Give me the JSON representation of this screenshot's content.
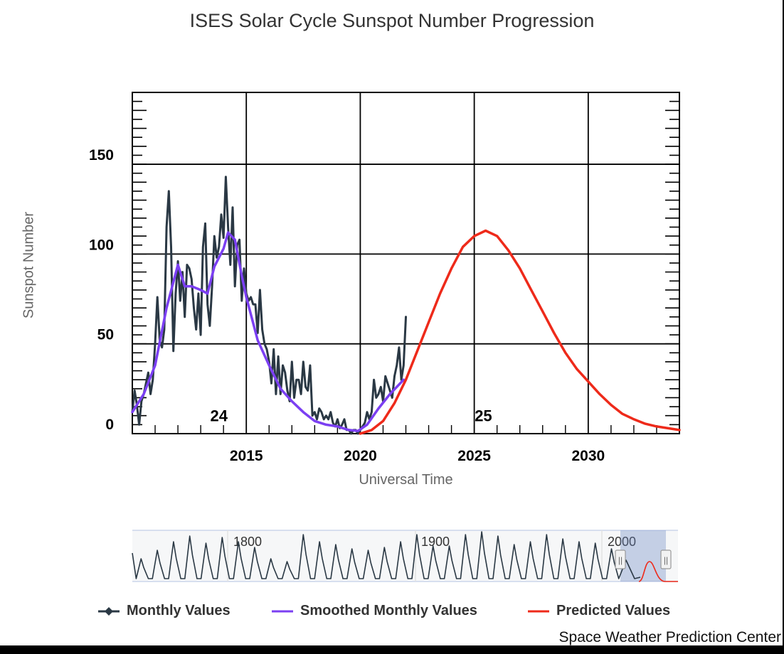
{
  "chart_data": {
    "type": "line",
    "title": "ISES Solar Cycle Sunspot Number Progression",
    "xlabel": "Universal Time",
    "ylabel": "Sunspot Number",
    "xlim": [
      2010.0,
      2034.0
    ],
    "ylim": [
      0,
      190
    ],
    "x_ticks": [
      2015,
      2020,
      2025,
      2030
    ],
    "y_ticks": [
      0,
      50,
      100,
      150
    ],
    "grid": true,
    "legend_position": "bottom",
    "cycle_labels": [
      {
        "text": "24",
        "x": 2013.8,
        "y": 10
      },
      {
        "text": "25",
        "x": 2025.4,
        "y": 10
      }
    ],
    "series": [
      {
        "name": "Monthly Values",
        "color": "#2a3844",
        "x": [
          2010.0,
          2010.1,
          2010.2,
          2010.3,
          2010.4,
          2010.5,
          2010.6,
          2010.7,
          2010.8,
          2010.9,
          2011.0,
          2011.1,
          2011.2,
          2011.3,
          2011.4,
          2011.5,
          2011.6,
          2011.7,
          2011.8,
          2011.9,
          2012.0,
          2012.1,
          2012.2,
          2012.3,
          2012.4,
          2012.5,
          2012.6,
          2012.7,
          2012.8,
          2012.9,
          2013.0,
          2013.1,
          2013.2,
          2013.3,
          2013.4,
          2013.5,
          2013.6,
          2013.7,
          2013.8,
          2013.9,
          2014.0,
          2014.1,
          2014.2,
          2014.3,
          2014.4,
          2014.5,
          2014.6,
          2014.7,
          2014.8,
          2014.9,
          2015.0,
          2015.1,
          2015.2,
          2015.3,
          2015.4,
          2015.5,
          2015.6,
          2015.7,
          2015.8,
          2015.9,
          2016.0,
          2016.1,
          2016.2,
          2016.3,
          2016.4,
          2016.5,
          2016.6,
          2016.7,
          2016.8,
          2016.9,
          2017.0,
          2017.1,
          2017.2,
          2017.3,
          2017.4,
          2017.5,
          2017.6,
          2017.7,
          2017.8,
          2017.9,
          2018.0,
          2018.1,
          2018.2,
          2018.3,
          2018.4,
          2018.5,
          2018.6,
          2018.7,
          2018.8,
          2018.9,
          2019.0,
          2019.1,
          2019.2,
          2019.3,
          2019.4,
          2019.5,
          2019.6,
          2019.7,
          2019.8,
          2019.9,
          2020.0,
          2020.1,
          2020.2,
          2020.3,
          2020.4,
          2020.5,
          2020.6,
          2020.7,
          2020.8,
          2020.9,
          2021.0,
          2021.1,
          2021.2,
          2021.3,
          2021.4,
          2021.5,
          2021.6,
          2021.7,
          2021.8,
          2021.9,
          2022.0
        ],
        "values": [
          12,
          24,
          16,
          5,
          18,
          22,
          28,
          34,
          22,
          30,
          50,
          76,
          52,
          48,
          58,
          115,
          135,
          104,
          46,
          78,
          96,
          74,
          90,
          65,
          94,
          92,
          86,
          70,
          58,
          78,
          55,
          104,
          117,
          72,
          60,
          82,
          110,
          98,
          104,
          122,
          109,
          143,
          115,
          94,
          126,
          82,
          105,
          108,
          74,
          92,
          78,
          74,
          76,
          72,
          72,
          56,
          80,
          58,
          50,
          47,
          40,
          28,
          47,
          22,
          43,
          22,
          38,
          34,
          24,
          18,
          40,
          20,
          30,
          30,
          22,
          40,
          26,
          24,
          38,
          10,
          12,
          8,
          14,
          12,
          8,
          10,
          8,
          12,
          6,
          4,
          8,
          3,
          5,
          8,
          2,
          2,
          0,
          2,
          2,
          0,
          2,
          4,
          6,
          12,
          8,
          12,
          30,
          20,
          22,
          26,
          18,
          32,
          28,
          24,
          20,
          32,
          38,
          48,
          30,
          38,
          65
        ]
      },
      {
        "name": "Smoothed Monthly Values",
        "color": "#7b3ff2",
        "x": [
          2010.0,
          2010.5,
          2011.0,
          2011.5,
          2012.0,
          2012.3,
          2012.6,
          2013.0,
          2013.3,
          2013.6,
          2014.0,
          2014.2,
          2014.5,
          2014.8,
          2015.0,
          2015.5,
          2016.0,
          2016.5,
          2017.0,
          2017.5,
          2018.0,
          2018.5,
          2019.0,
          2019.5,
          2019.9,
          2020.3,
          2020.8,
          2021.3,
          2021.9
        ],
        "values": [
          12,
          22,
          38,
          70,
          94,
          82,
          82,
          80,
          78,
          93,
          103,
          112,
          108,
          88,
          76,
          52,
          38,
          25,
          18,
          12,
          7,
          5,
          4,
          2,
          1.5,
          5,
          14,
          22,
          30
        ]
      },
      {
        "name": "Predicted Values",
        "color": "#ee2a1a",
        "x": [
          2020.0,
          2020.5,
          2021.0,
          2021.5,
          2022.0,
          2022.5,
          2023.0,
          2023.5,
          2024.0,
          2024.5,
          2025.0,
          2025.5,
          2026.0,
          2026.5,
          2027.0,
          2027.5,
          2028.0,
          2028.5,
          2029.0,
          2029.5,
          2030.0,
          2030.5,
          2031.0,
          2031.5,
          2032.0,
          2032.5,
          2033.0,
          2033.5,
          2034.0
        ],
        "values": [
          0,
          2,
          7,
          17,
          30,
          46,
          62,
          78,
          92,
          104,
          110,
          113,
          110,
          102,
          92,
          80,
          68,
          56,
          45,
          36,
          29,
          22,
          16,
          11,
          8,
          5.5,
          4,
          3,
          2
        ]
      }
    ]
  },
  "navigator": {
    "x_labels": [
      "1800",
      "1900",
      "2000"
    ],
    "handle_glyph": "||"
  },
  "legend": [
    {
      "label": "Monthly Values",
      "color": "#2a3844",
      "icon": "line-with-diamond-marker"
    },
    {
      "label": "Smoothed Monthly Values",
      "color": "#7b3ff2",
      "icon": "line"
    },
    {
      "label": "Predicted Values",
      "color": "#ee2a1a",
      "icon": "line"
    }
  ],
  "credit": "Space Weather Prediction Center"
}
